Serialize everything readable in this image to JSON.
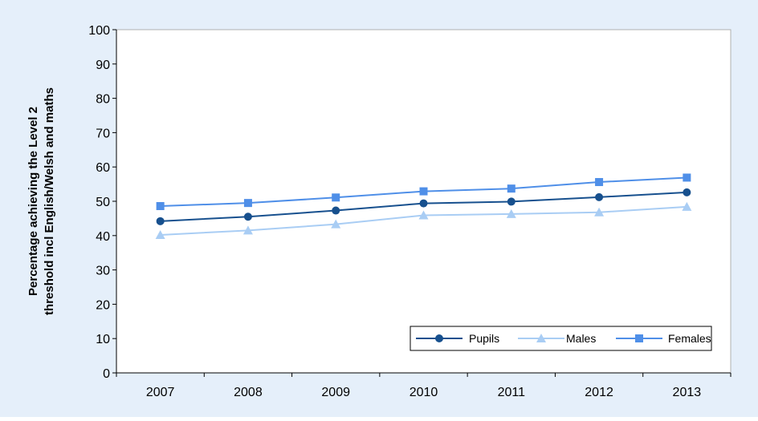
{
  "chart_data": {
    "type": "line",
    "title": "",
    "ylabel_line1": "Percentage achieving the Level 2",
    "ylabel_line2": "threshold incl English/Welsh and maths",
    "xlabel": "",
    "categories": [
      "2007",
      "2008",
      "2009",
      "2010",
      "2011",
      "2012",
      "2013"
    ],
    "ylim": [
      0,
      100
    ],
    "yticks": [
      0,
      10,
      20,
      30,
      40,
      50,
      60,
      70,
      80,
      90,
      100
    ],
    "grid": false,
    "legend_position": "bottom-right",
    "series": [
      {
        "name": "Pupils",
        "marker": "circle",
        "color": "#17508e",
        "values": [
          44.2,
          45.5,
          47.3,
          49.4,
          49.9,
          51.2,
          52.6
        ]
      },
      {
        "name": "Males",
        "marker": "triangle",
        "color": "#a9cdf4",
        "values": [
          40.2,
          41.5,
          43.3,
          45.9,
          46.3,
          46.8,
          48.4
        ]
      },
      {
        "name": "Females",
        "marker": "square",
        "color": "#4f8fe8",
        "values": [
          48.6,
          49.5,
          51.1,
          52.9,
          53.7,
          55.6,
          56.9
        ]
      }
    ]
  },
  "colors": {
    "background": "#e5effa",
    "plot_area": "#ffffff",
    "axis": "#000000"
  }
}
